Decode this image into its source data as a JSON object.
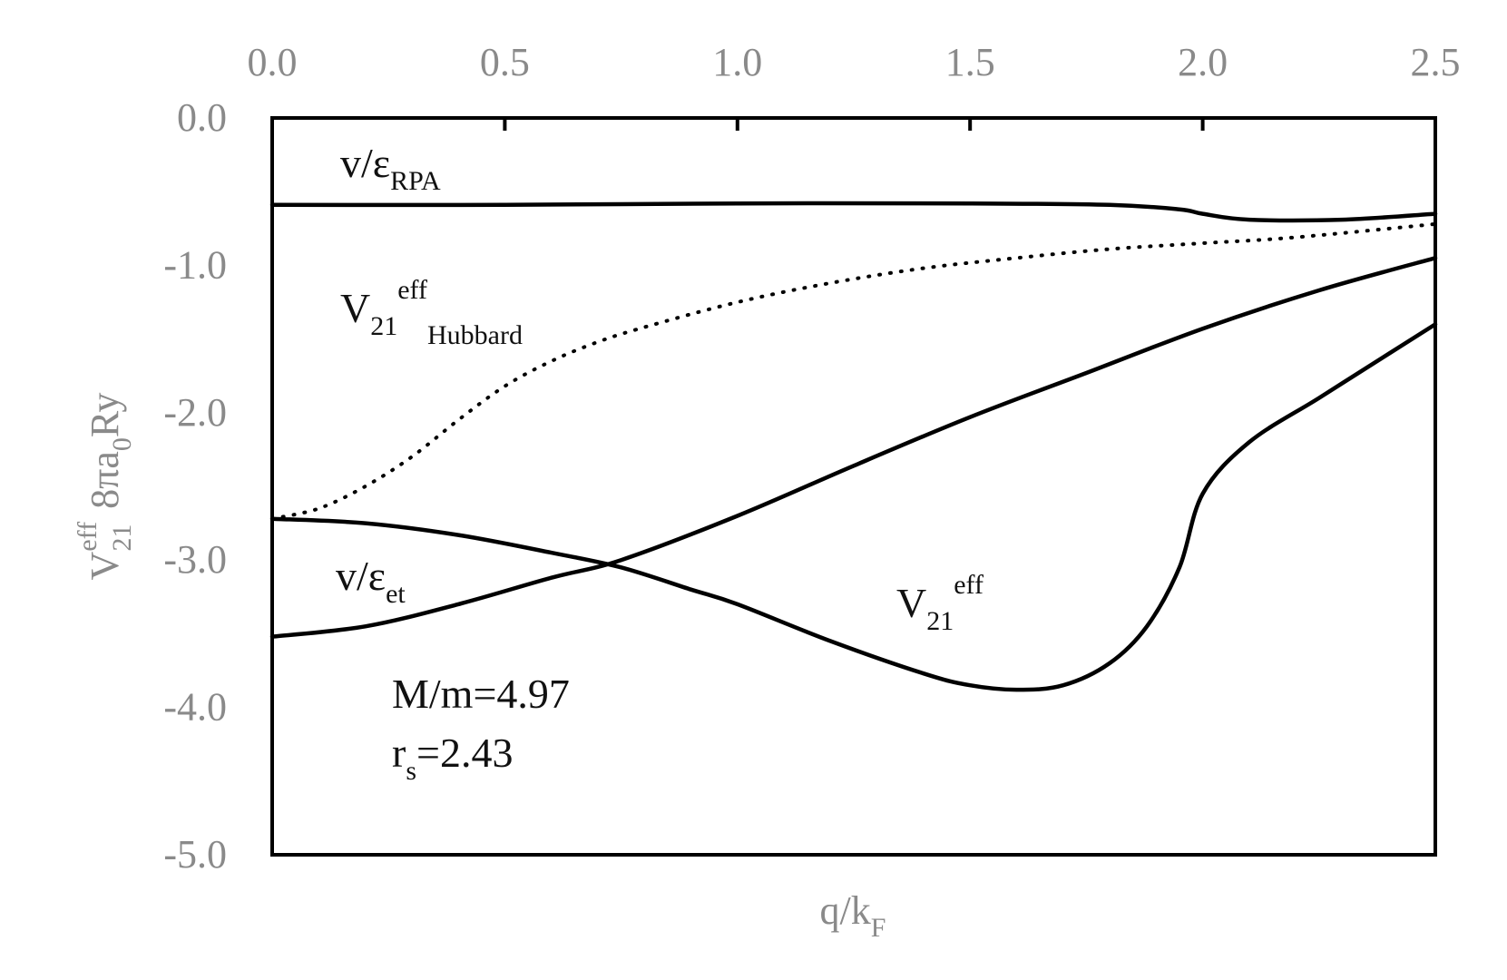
{
  "chart_data": {
    "type": "line",
    "title": "",
    "xlabel": {
      "base": "q/k",
      "sub": "F"
    },
    "ylabel": {
      "p1": "V",
      "p1_sub": "21",
      "p1_sup": "eff",
      "p2": "8πa",
      "p2_sub": "0",
      "p3": "Ry"
    },
    "xlim": [
      0,
      2.5
    ],
    "ylim": [
      -5,
      0
    ],
    "x_ticks": [
      0,
      0.5,
      1.0,
      1.5,
      2.0,
      2.5
    ],
    "x_tick_labels": [
      "0.0",
      "0.5",
      "1.0",
      "1.5",
      "2.0",
      "2.5"
    ],
    "y_ticks": [
      0,
      -1,
      -2,
      -3,
      -4,
      -5
    ],
    "y_tick_labels": [
      "0.0",
      "-1.0",
      "-2.0",
      "-3.0",
      "-4.0",
      "-5.0"
    ],
    "x_axis_position": "top",
    "grid": false,
    "series": [
      {
        "name": "v/ε_RPA",
        "style": "solid",
        "x": [
          0,
          0.5,
          1.0,
          1.5,
          1.8,
          1.95,
          2.0,
          2.1,
          2.3,
          2.5
        ],
        "y": [
          -0.59,
          -0.59,
          -0.58,
          -0.58,
          -0.59,
          -0.62,
          -0.65,
          -0.69,
          -0.69,
          -0.65
        ]
      },
      {
        "name": "V21eff_Hubbard",
        "style": "dotted",
        "x": [
          0,
          0.1,
          0.2,
          0.3,
          0.4,
          0.5,
          0.6,
          0.7,
          0.8,
          1.0,
          1.2,
          1.4,
          1.6,
          1.8,
          2.0,
          2.2,
          2.5
        ],
        "y": [
          -2.72,
          -2.65,
          -2.5,
          -2.3,
          -2.05,
          -1.82,
          -1.65,
          -1.52,
          -1.42,
          -1.25,
          -1.12,
          -1.02,
          -0.95,
          -0.89,
          -0.85,
          -0.81,
          -0.72
        ]
      },
      {
        "name": "v/ε_et",
        "style": "solid",
        "x": [
          0,
          0.2,
          0.4,
          0.6,
          0.75,
          1.0,
          1.25,
          1.5,
          1.75,
          2.0,
          2.25,
          2.5
        ],
        "y": [
          -3.52,
          -3.45,
          -3.3,
          -3.12,
          -3.0,
          -2.7,
          -2.36,
          -2.03,
          -1.73,
          -1.43,
          -1.17,
          -0.95
        ]
      },
      {
        "name": "V21eff",
        "style": "solid",
        "x": [
          0,
          0.2,
          0.4,
          0.6,
          0.75,
          0.9,
          1.0,
          1.2,
          1.4,
          1.5,
          1.6,
          1.7,
          1.8,
          1.88,
          1.95,
          2.0,
          2.1,
          2.25,
          2.4,
          2.5
        ],
        "y": [
          -2.72,
          -2.75,
          -2.83,
          -2.95,
          -3.05,
          -3.2,
          -3.3,
          -3.55,
          -3.77,
          -3.85,
          -3.88,
          -3.85,
          -3.7,
          -3.45,
          -3.05,
          -2.55,
          -2.2,
          -1.9,
          -1.6,
          -1.4
        ]
      }
    ],
    "annotations": [
      {
        "id": "rpa",
        "base": "v/ε",
        "sub": "RPA",
        "sup": ""
      },
      {
        "id": "hubbard",
        "base": "V",
        "sub": "21",
        "sup": "eff",
        "sub2": "Hubbard"
      },
      {
        "id": "et",
        "base": "v/ε",
        "sub": "et",
        "sup": ""
      },
      {
        "id": "veff",
        "base": "V",
        "sub": "21",
        "sup": "eff"
      },
      {
        "id": "mass",
        "text": "M/m=4.97"
      },
      {
        "id": "rs",
        "base": "r",
        "sub": "s",
        "rest": "=2.43"
      }
    ]
  }
}
